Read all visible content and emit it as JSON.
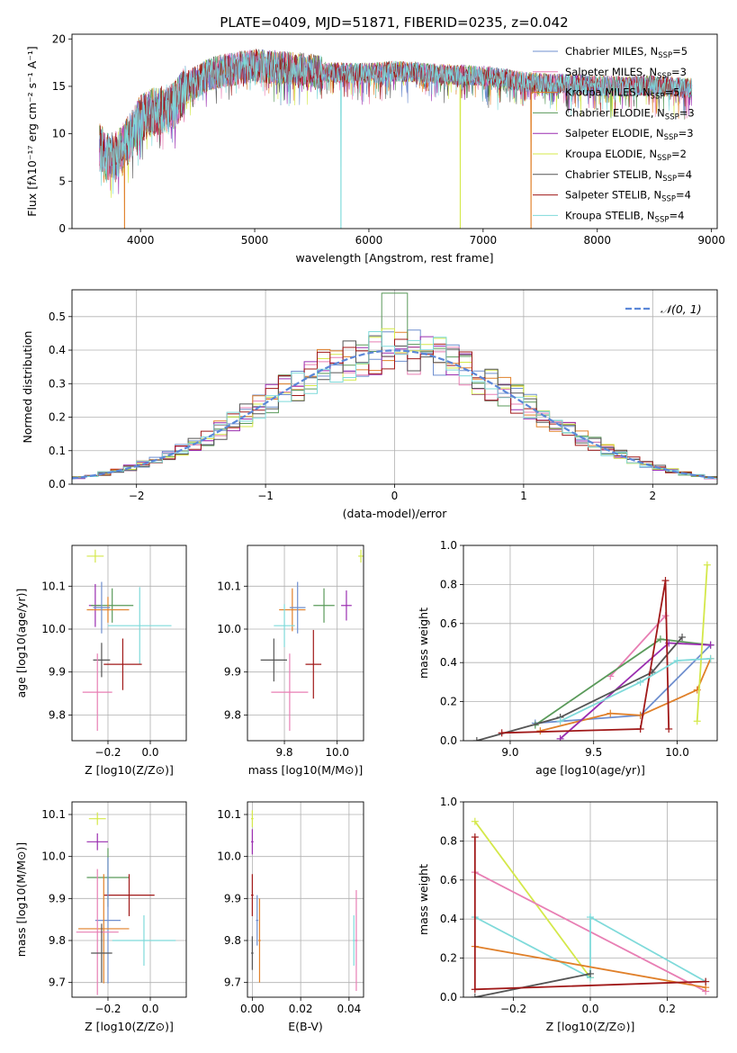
{
  "title": "PLATE=0409, MJD=51871, FIBERID=0235, z=0.042",
  "colors": {
    "Chabrier MILES": "#6f8fcf",
    "Salpeter MILES": "#e87fb4",
    "Kroupa MILES": "#e0802a",
    "Chabrier ELODIE": "#5a9a5a",
    "Salpeter ELODIE": "#9a2db0",
    "Kroupa ELODIE": "#d4e84a",
    "Chabrier STELIB": "#555555",
    "Salpeter STELIB": "#a01818",
    "Kroupa STELIB": "#7fdada"
  },
  "chart_data": [
    {
      "id": "spectrum",
      "type": "line",
      "title": "PLATE=0409, MJD=51871, FIBERID=0235, z=0.042",
      "xlabel": "wavelength [Angstrom, rest frame]",
      "ylabel": "Flux [fλ10⁻¹⁷ erg cm⁻² s⁻¹ A⁻¹]",
      "xlim": [
        3400,
        9050
      ],
      "ylim": [
        0,
        20.5
      ],
      "xticks": [
        4000,
        5000,
        6000,
        7000,
        8000,
        9000
      ],
      "yticks": [
        0,
        5,
        10,
        15,
        20
      ],
      "grid": false,
      "legend_position": "top-right",
      "continuum_x": [
        3650,
        3700,
        3800,
        3900,
        4000,
        4100,
        4200,
        4300,
        4400,
        4500,
        4600,
        4800,
        5000,
        5200,
        5400,
        5600,
        5800,
        6000,
        6200,
        6400,
        6600,
        6800,
        7000,
        7200,
        7400,
        7600,
        7800,
        8000,
        8200,
        8400,
        8600,
        8800
      ],
      "continuum_y": [
        8.5,
        7.5,
        7.8,
        9.5,
        11.5,
        12.3,
        12.5,
        13.0,
        14.8,
        15.5,
        16.3,
        16.8,
        17.2,
        17.0,
        16.8,
        16.5,
        16.4,
        16.4,
        16.6,
        16.5,
        16.3,
        16.2,
        16.1,
        15.8,
        15.4,
        15.3,
        15.2,
        15.1,
        15.0,
        15.1,
        15.0,
        14.8
      ],
      "series": [
        {
          "name": "Chabrier MILES, N_SSP=5"
        },
        {
          "name": "Salpeter MILES, N_SSP=3"
        },
        {
          "name": "Kroupa MILES, N_SSP=5"
        },
        {
          "name": "Chabrier ELODIE, N_SSP=3"
        },
        {
          "name": "Salpeter ELODIE, N_SSP=3"
        },
        {
          "name": "Kroupa ELODIE, N_SSP=2"
        },
        {
          "name": "Chabrier STELIB, N_SSP=4"
        },
        {
          "name": "Salpeter STELIB, N_SSP=4"
        },
        {
          "name": "Kroupa STELIB, N_SSP=4"
        }
      ],
      "dips": [
        {
          "x": 3860,
          "y": 0,
          "series": "Kroupa MILES"
        },
        {
          "x": 5755,
          "y": 0,
          "series": "Kroupa STELIB"
        },
        {
          "x": 6800,
          "y": 0,
          "series": "Kroupa ELODIE"
        },
        {
          "x": 7420,
          "y": 0,
          "series": "Kroupa MILES"
        }
      ]
    },
    {
      "id": "residuals",
      "type": "area",
      "xlabel": "(data-model)/error",
      "ylabel": "Normed distribution",
      "xlim": [
        -2.5,
        2.5
      ],
      "ylim": [
        0,
        0.58
      ],
      "xticks": [
        -2,
        -1,
        0,
        1,
        2
      ],
      "yticks": [
        0.0,
        0.1,
        0.2,
        0.3,
        0.4,
        0.5
      ],
      "grid": true,
      "legend": "𝒩(0, 1)",
      "legend_position": "top-right",
      "reference_curve": "normal distribution, mean 0, sigma 1"
    },
    {
      "id": "age-vs-Z",
      "type": "scatter",
      "xlabel": "Z [log10(Z/Z⊙)]",
      "ylabel": "age  [log10(age/yr)]",
      "xlim": [
        -0.37,
        0.17
      ],
      "ylim": [
        9.74,
        10.195
      ],
      "xticks": [
        -0.2,
        0.0
      ],
      "yticks": [
        9.8,
        9.9,
        10.0,
        10.1
      ],
      "grid": true,
      "points": [
        {
          "series": "Kroupa ELODIE",
          "x": -0.26,
          "y": 10.17,
          "xerr": 0.04,
          "yerr": 0.015
        },
        {
          "series": "Salpeter ELODIE",
          "x": -0.26,
          "y": 10.055,
          "xerr": 0.03,
          "yerr": 0.05
        },
        {
          "series": "Chabrier ELODIE",
          "x": -0.18,
          "y": 10.055,
          "xerr": 0.1,
          "yerr": 0.04
        },
        {
          "series": "Kroupa MILES",
          "x": -0.2,
          "y": 10.045,
          "xerr": 0.1,
          "yerr": 0.03
        },
        {
          "series": "Kroupa STELIB",
          "x": -0.05,
          "y": 10.008,
          "xerr": 0.15,
          "yerr": 0.09
        },
        {
          "series": "Chabrier MILES",
          "x": -0.23,
          "y": 10.05,
          "xerr": 0.04,
          "yerr": 0.06
        },
        {
          "series": "Chabrier STELIB",
          "x": -0.23,
          "y": 9.928,
          "xerr": 0.04,
          "yerr": 0.04
        },
        {
          "series": "Salpeter STELIB",
          "x": -0.13,
          "y": 9.918,
          "xerr": 0.09,
          "yerr": 0.06
        },
        {
          "series": "Salpeter MILES",
          "x": -0.25,
          "y": 9.853,
          "xerr": 0.07,
          "yerr": 0.09
        }
      ]
    },
    {
      "id": "age-vs-mass",
      "type": "scatter",
      "xlabel": "mass [log10(M/M⊙)]",
      "ylabel": "",
      "xlim": [
        9.66,
        10.1
      ],
      "ylim": [
        9.74,
        10.195
      ],
      "xticks": [
        9.8,
        10.0
      ],
      "yticks": [
        9.8,
        9.9,
        10.0,
        10.1
      ],
      "grid": true,
      "points": [
        {
          "series": "Kroupa ELODIE",
          "x": 10.09,
          "y": 10.17,
          "xerr": 0.01,
          "yerr": 0.015
        },
        {
          "series": "Salpeter ELODIE",
          "x": 10.035,
          "y": 10.055,
          "xerr": 0.02,
          "yerr": 0.035
        },
        {
          "series": "Chabrier ELODIE",
          "x": 9.95,
          "y": 10.055,
          "xerr": 0.04,
          "yerr": 0.04
        },
        {
          "series": "Kroupa MILES",
          "x": 9.83,
          "y": 10.045,
          "xerr": 0.05,
          "yerr": 0.05
        },
        {
          "series": "Chabrier MILES",
          "x": 9.85,
          "y": 10.05,
          "xerr": 0.03,
          "yerr": 0.06
        },
        {
          "series": "Kroupa STELIB",
          "x": 9.8,
          "y": 10.008,
          "xerr": 0.04,
          "yerr": 0.05
        },
        {
          "series": "Chabrier STELIB",
          "x": 9.76,
          "y": 9.928,
          "xerr": 0.05,
          "yerr": 0.05
        },
        {
          "series": "Salpeter STELIB",
          "x": 9.91,
          "y": 9.918,
          "xerr": 0.03,
          "yerr": 0.08
        },
        {
          "series": "Salpeter MILES",
          "x": 9.82,
          "y": 9.853,
          "xerr": 0.07,
          "yerr": 0.09
        }
      ]
    },
    {
      "id": "mass-weight-vs-age",
      "type": "line",
      "xlabel": "age  [log10(age/yr)]",
      "ylabel": "mass weight",
      "xlim": [
        8.72,
        10.24
      ],
      "ylim": [
        0,
        1.0
      ],
      "xticks": [
        9.0,
        9.5,
        10.0
      ],
      "yticks": [
        0.0,
        0.2,
        0.4,
        0.6,
        0.8,
        1.0
      ],
      "grid": true,
      "series": [
        {
          "name": "Chabrier MILES",
          "x": [
            9.15,
            9.78,
            10.2
          ],
          "y": [
            0.09,
            0.13,
            0.49
          ]
        },
        {
          "name": "Salpeter MILES",
          "x": [
            9.6,
            9.93
          ],
          "y": [
            0.33,
            0.64
          ]
        },
        {
          "name": "Kroupa MILES",
          "x": [
            9.18,
            9.6,
            9.78,
            10.12,
            10.2
          ],
          "y": [
            0.05,
            0.14,
            0.13,
            0.26,
            0.42
          ]
        },
        {
          "name": "Chabrier ELODIE",
          "x": [
            9.15,
            9.9,
            10.2
          ],
          "y": [
            0.08,
            0.52,
            0.49
          ]
        },
        {
          "name": "Salpeter ELODIE",
          "x": [
            9.3,
            9.95,
            10.2
          ],
          "y": [
            0.01,
            0.5,
            0.49
          ]
        },
        {
          "name": "Kroupa ELODIE",
          "x": [
            10.12,
            10.18
          ],
          "y": [
            0.1,
            0.9
          ]
        },
        {
          "name": "Chabrier STELIB",
          "x": [
            8.8,
            9.3,
            9.85,
            10.03
          ],
          "y": [
            0.0,
            0.12,
            0.35,
            0.53
          ]
        },
        {
          "name": "Salpeter STELIB",
          "x": [
            8.95,
            9.78,
            9.93,
            9.95
          ],
          "y": [
            0.04,
            0.06,
            0.82,
            0.06
          ]
        },
        {
          "name": "Kroupa STELIB",
          "x": [
            9.3,
            9.78,
            10.0,
            10.2
          ],
          "y": [
            0.1,
            0.3,
            0.41,
            0.42
          ]
        }
      ]
    },
    {
      "id": "mass-vs-Z",
      "type": "scatter",
      "xlabel": "Z [log10(Z/Z⊙)]",
      "ylabel": "mass [log10(M/M⊙)]",
      "xlim": [
        -0.37,
        0.17
      ],
      "ylim": [
        9.665,
        10.13
      ],
      "xticks": [
        -0.2,
        0.0
      ],
      "yticks": [
        9.7,
        9.8,
        9.9,
        10.0,
        10.1
      ],
      "grid": true,
      "points": [
        {
          "series": "Kroupa ELODIE",
          "x": -0.25,
          "y": 10.09,
          "xerr": 0.04,
          "yerr": 0.015
        },
        {
          "series": "Salpeter ELODIE",
          "x": -0.25,
          "y": 10.035,
          "xerr": 0.05,
          "yerr": 0.02
        },
        {
          "series": "Chabrier ELODIE",
          "x": -0.2,
          "y": 9.95,
          "xerr": 0.1,
          "yerr": 0.07
        },
        {
          "series": "Salpeter STELIB",
          "x": -0.1,
          "y": 9.908,
          "xerr": 0.12,
          "yerr": 0.05
        },
        {
          "series": "Chabrier MILES",
          "x": -0.2,
          "y": 9.848,
          "xerr": 0.06,
          "yerr": 0.15
        },
        {
          "series": "Kroupa MILES",
          "x": -0.22,
          "y": 9.828,
          "xerr": 0.12,
          "yerr": 0.13
        },
        {
          "series": "Salpeter MILES",
          "x": -0.25,
          "y": 9.82,
          "xerr": 0.1,
          "yerr": 0.15
        },
        {
          "series": "Kroupa STELIB",
          "x": -0.03,
          "y": 9.8,
          "xerr": 0.15,
          "yerr": 0.06
        },
        {
          "series": "Chabrier STELIB",
          "x": -0.23,
          "y": 9.77,
          "xerr": 0.05,
          "yerr": 0.07
        }
      ]
    },
    {
      "id": "mass-vs-ebv",
      "type": "scatter",
      "xlabel": "E(B-V)",
      "ylabel": "",
      "xlim": [
        -0.002,
        0.046
      ],
      "ylim": [
        9.665,
        10.13
      ],
      "xticks": [
        0.0,
        0.02,
        0.04
      ],
      "yticks": [
        9.7,
        9.8,
        9.9,
        10.0,
        10.1
      ],
      "grid": true,
      "points": [
        {
          "series": "Kroupa ELODIE",
          "x": 0.0,
          "y": 10.09,
          "xerr": 0.0005,
          "yerr": 0.02
        },
        {
          "series": "Salpeter ELODIE",
          "x": 0.0,
          "y": 10.035,
          "xerr": 0.0005,
          "yerr": 0.03
        },
        {
          "series": "Salpeter STELIB",
          "x": 0.0,
          "y": 9.908,
          "xerr": 0.0005,
          "yerr": 0.05
        },
        {
          "series": "Chabrier STELIB",
          "x": 0.0,
          "y": 9.77,
          "xerr": 0.0005,
          "yerr": 0.04
        },
        {
          "series": "Chabrier MILES",
          "x": 0.002,
          "y": 9.848,
          "xerr": 0.0005,
          "yerr": 0.06
        },
        {
          "series": "Kroupa MILES",
          "x": 0.003,
          "y": 9.8,
          "xerr": 0.0005,
          "yerr": 0.1
        },
        {
          "series": "Salpeter MILES",
          "x": 0.043,
          "y": 9.8,
          "xerr": 0.0005,
          "yerr": 0.12
        },
        {
          "series": "Kroupa STELIB",
          "x": 0.042,
          "y": 9.8,
          "xerr": 0.0005,
          "yerr": 0.06
        }
      ]
    },
    {
      "id": "mass-weight-vs-Z",
      "type": "line",
      "xlabel": "Z [log10(Z/Z⊙)]",
      "ylabel": "mass weight",
      "xlim": [
        -0.33,
        0.33
      ],
      "ylim": [
        0,
        1.0
      ],
      "xticks": [
        -0.2,
        0.0,
        0.2
      ],
      "yticks": [
        0.0,
        0.2,
        0.4,
        0.6,
        0.8,
        1.0
      ],
      "grid": true,
      "series": [
        {
          "name": "Kroupa ELODIE",
          "x": [
            -0.3,
            0.0
          ],
          "y": [
            0.9,
            0.1
          ]
        },
        {
          "name": "Salpeter MILES",
          "x": [
            -0.3,
            0.3
          ],
          "y": [
            0.64,
            0.03
          ]
        },
        {
          "name": "Kroupa STELIB",
          "x": [
            -0.3,
            0.0,
            0.0,
            0.3
          ],
          "y": [
            0.41,
            0.1,
            0.41,
            0.08
          ]
        },
        {
          "name": "Kroupa MILES",
          "x": [
            -0.3,
            0.3
          ],
          "y": [
            0.26,
            0.05
          ]
        },
        {
          "name": "Chabrier STELIB",
          "x": [
            -0.3,
            0.0
          ],
          "y": [
            0.0,
            0.12
          ]
        },
        {
          "name": "Salpeter STELIB",
          "x": [
            -0.3,
            -0.3,
            0.3
          ],
          "y": [
            0.82,
            0.04,
            0.08
          ]
        }
      ]
    }
  ]
}
